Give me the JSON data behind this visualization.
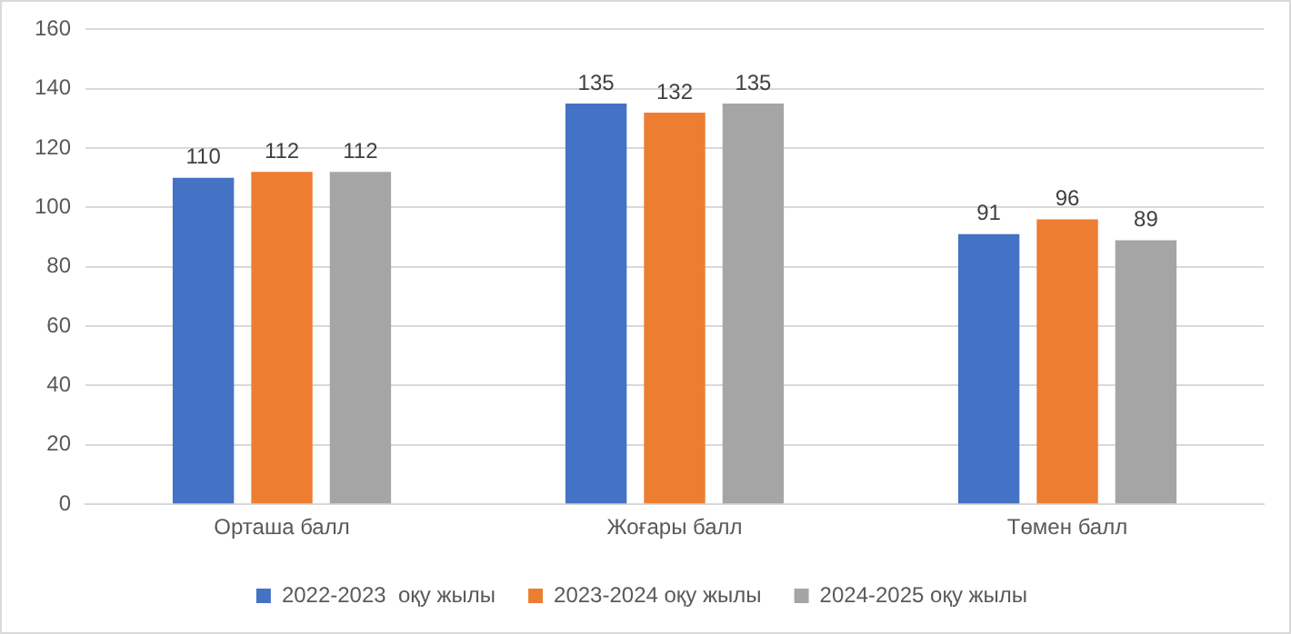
{
  "chart_data": {
    "type": "bar",
    "categories": [
      "Орташа балл",
      "Жоғары балл",
      "Төмен балл"
    ],
    "series": [
      {
        "name": "2022-2023  оқу жылы",
        "color": "#4472c4",
        "values": [
          110,
          135,
          91
        ]
      },
      {
        "name": "2023-2024 оқу жылы",
        "color": "#ed7d31",
        "values": [
          112,
          132,
          96
        ]
      },
      {
        "name": "2024-2025 оқу жылы",
        "color": "#a5a5a5",
        "values": [
          112,
          135,
          89
        ]
      }
    ],
    "ylim": [
      0,
      160
    ],
    "yticks": [
      0,
      20,
      40,
      60,
      80,
      100,
      120,
      140,
      160
    ],
    "grid": "y",
    "legend": "bottom",
    "data_labels": true
  }
}
